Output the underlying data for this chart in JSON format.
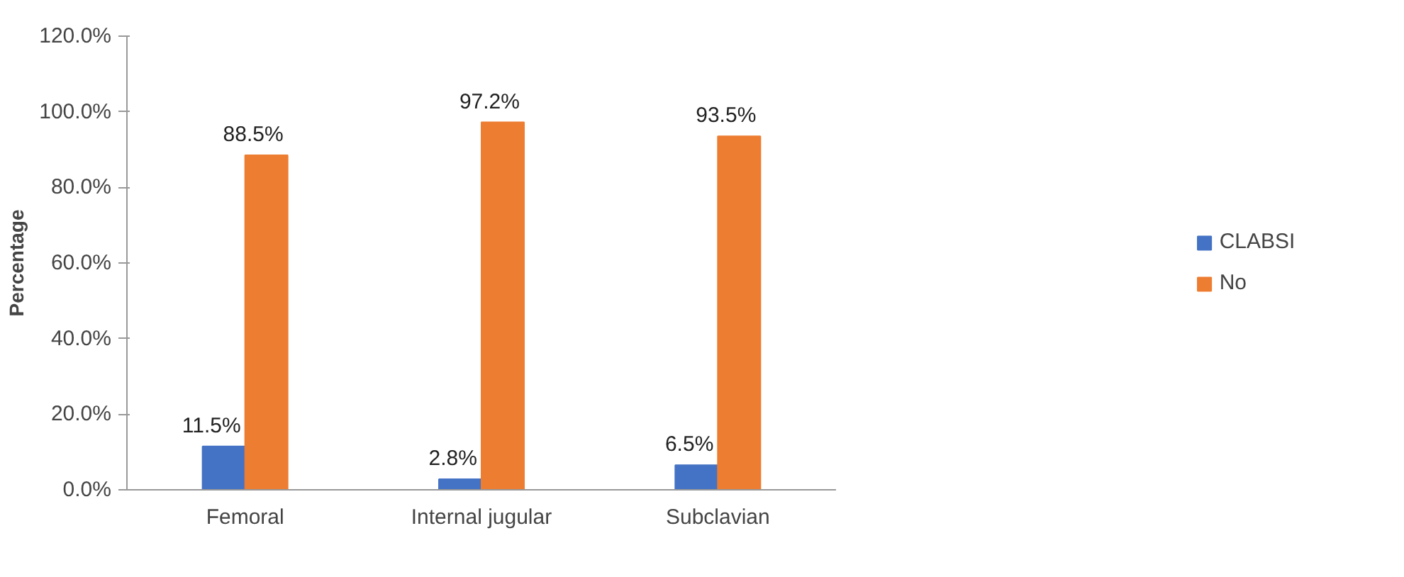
{
  "chart_data": {
    "type": "bar",
    "ylabel": "Percentage",
    "categories": [
      "Femoral",
      "Internal jugular",
      "Subclavian"
    ],
    "series": [
      {
        "name": "CLABSI",
        "color": "#4472c4",
        "values": [
          11.5,
          2.8,
          6.5
        ]
      },
      {
        "name": "No",
        "color": "#ed7d31",
        "values": [
          88.5,
          97.2,
          93.5
        ]
      }
    ],
    "ylim": [
      0,
      120
    ],
    "yticks": [
      {
        "value": 0,
        "label": "0.0%"
      },
      {
        "value": 20,
        "label": "20.0%"
      },
      {
        "value": 40,
        "label": "40.0%"
      },
      {
        "value": 60,
        "label": "60.0%"
      },
      {
        "value": 80,
        "label": "80.0%"
      },
      {
        "value": 100,
        "label": "100.0%"
      },
      {
        "value": 120,
        "label": "120.0%"
      }
    ],
    "value_labels": [
      [
        "11.5%",
        "2.8%",
        "6.5%"
      ],
      [
        "88.5%",
        "97.2%",
        "93.5%"
      ]
    ],
    "grid": false,
    "legend": "right"
  }
}
